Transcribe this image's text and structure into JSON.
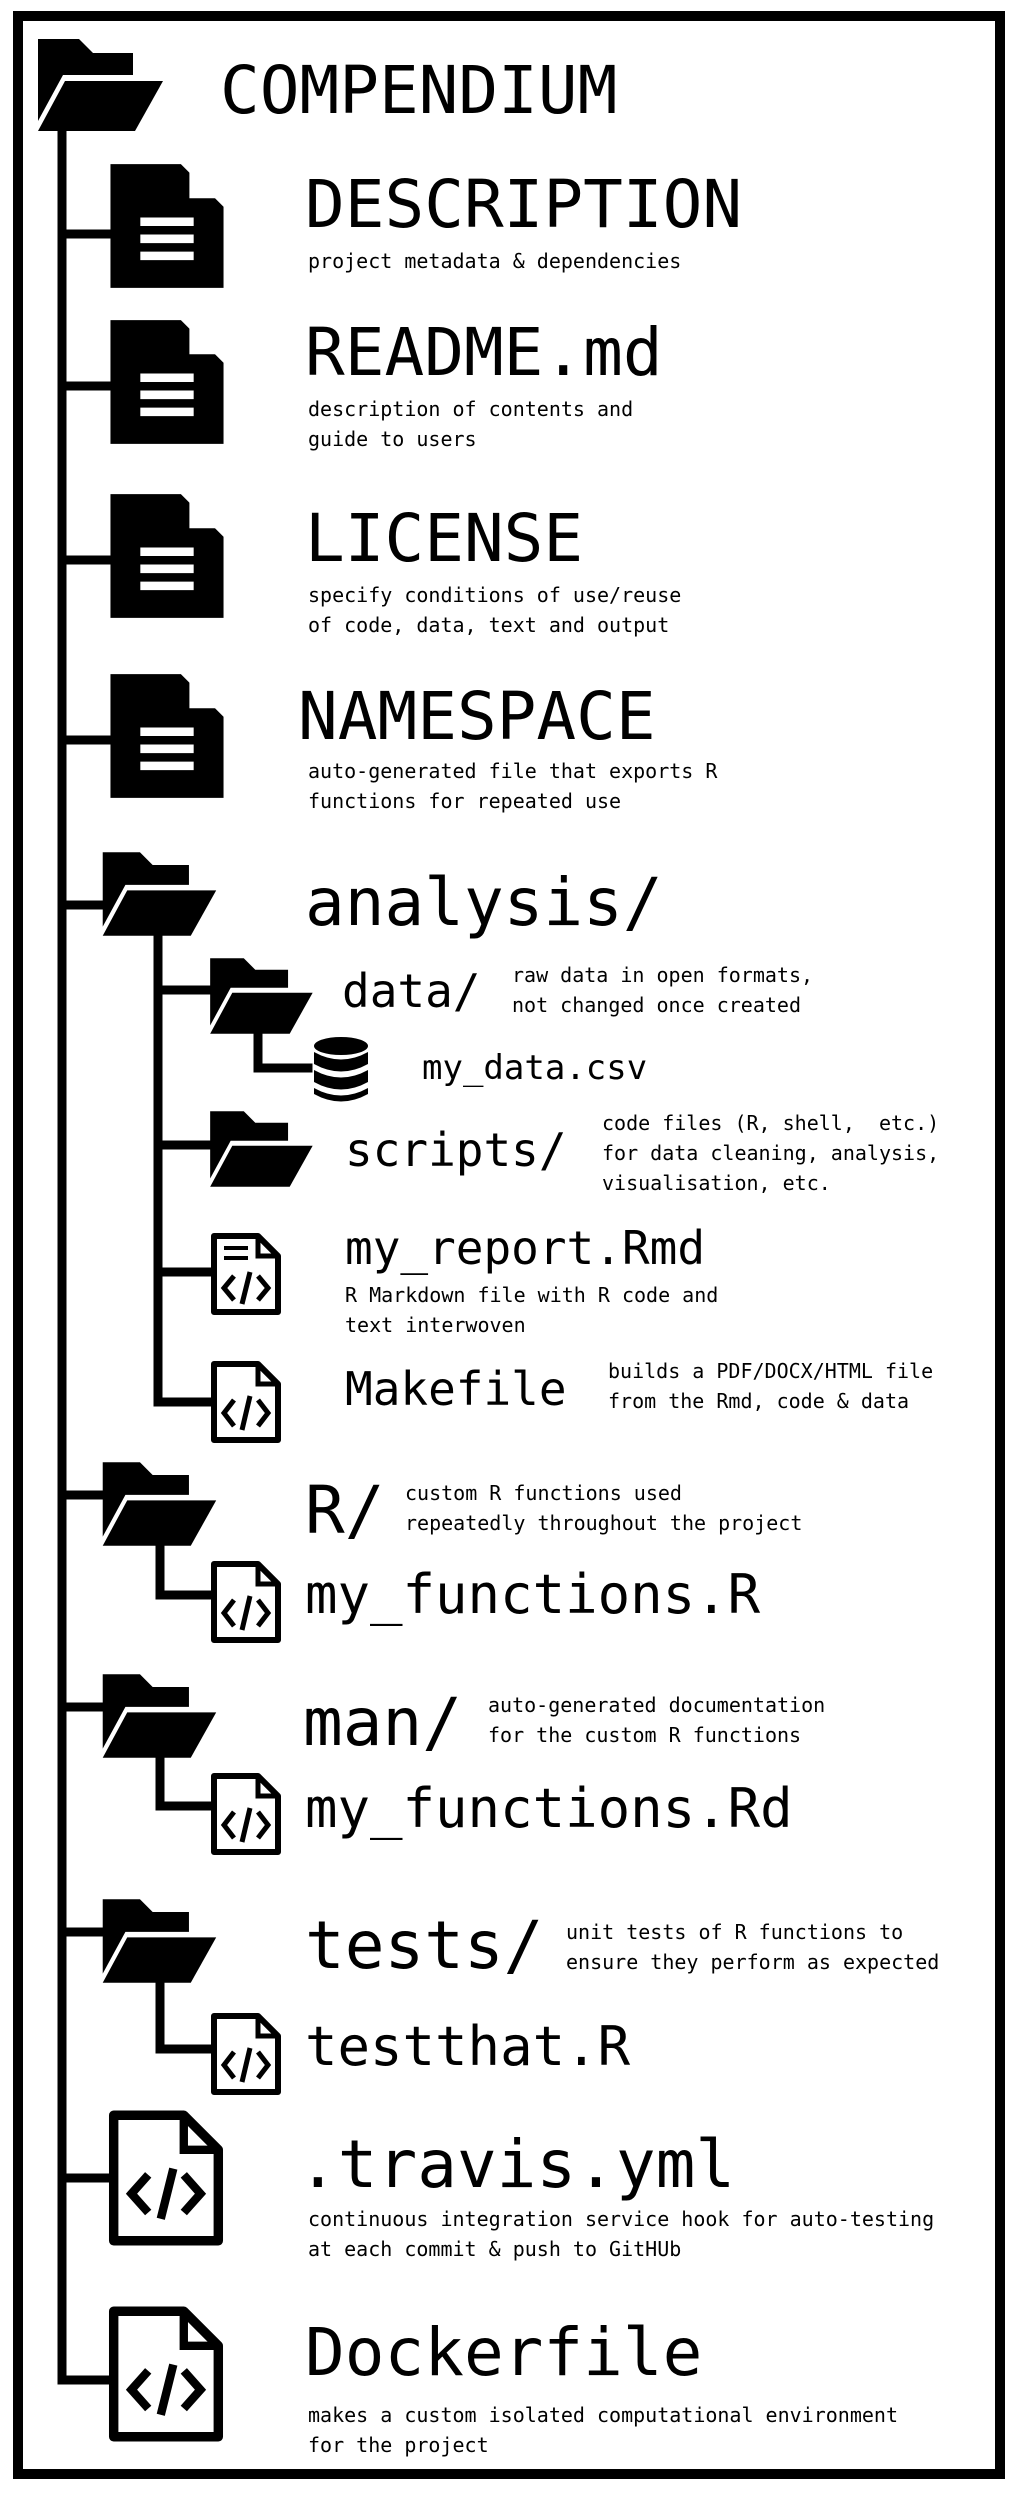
{
  "root": {
    "name": "COMPENDIUM"
  },
  "files": {
    "description": {
      "name": "DESCRIPTION",
      "desc": [
        "project metadata & dependencies"
      ]
    },
    "readme": {
      "name": "README.md",
      "desc": [
        "description of contents and",
        "guide to users"
      ]
    },
    "license": {
      "name": "LICENSE",
      "desc": [
        "specify conditions of use/reuse",
        "of code, data, text and output"
      ]
    },
    "namespace": {
      "name": "NAMESPACE",
      "desc": [
        "auto-generated file that exports R",
        "functions for repeated use"
      ]
    },
    "travis": {
      "name": ".travis.yml",
      "desc": [
        "continuous integration service hook for auto-testing",
        "at each commit & push to GitHUb"
      ]
    },
    "dockerfile": {
      "name": "Dockerfile",
      "desc": [
        "makes a custom isolated computational environment",
        "for the project"
      ]
    }
  },
  "analysis": {
    "name": "analysis/",
    "data": {
      "name": "data/",
      "desc": [
        "raw data in open formats,",
        "not changed once created"
      ],
      "file": "my_data.csv"
    },
    "scripts": {
      "name": "scripts/",
      "desc": [
        "code files (R, shell,  etc.)",
        "for data cleaning, analysis,",
        "visualisation, etc."
      ]
    },
    "report": {
      "name": "my_report.Rmd",
      "desc": [
        "R Markdown file with R code and",
        "text interwoven"
      ]
    },
    "makefile": {
      "name": "Makefile",
      "desc": [
        "builds a PDF/DOCX/HTML file",
        "from the Rmd, code & data"
      ]
    }
  },
  "r_dir": {
    "name": "R/",
    "desc": [
      "custom R functions used",
      "repeatedly throughout the project"
    ],
    "file": "my_functions.R"
  },
  "man_dir": {
    "name": "man/",
    "desc": [
      "auto-generated documentation",
      "for the custom R functions"
    ],
    "file": "my_functions.Rd"
  },
  "tests_dir": {
    "name": "tests/",
    "desc": [
      "unit tests of R functions to",
      "ensure they perform as expected"
    ],
    "file": "testthat.R"
  },
  "icons": {
    "folder": "folder-icon",
    "document": "document-icon",
    "database": "database-icon",
    "rmarkdown": "rmarkdown-file-icon",
    "code_file": "code-file-icon"
  }
}
